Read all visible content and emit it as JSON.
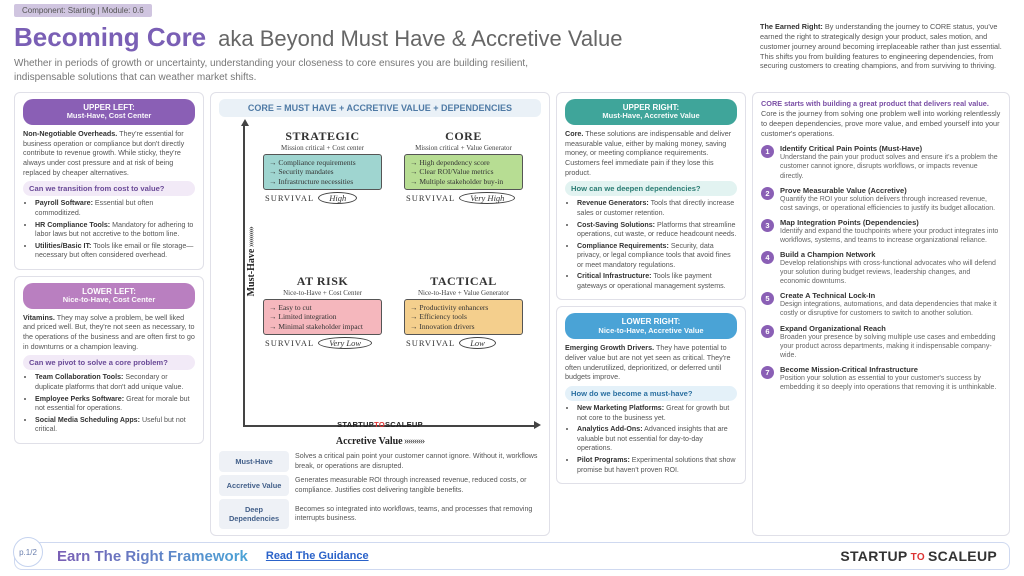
{
  "meta": {
    "component": "Component: Starting",
    "module": "Module: 0.6"
  },
  "title": {
    "main": "Becoming Core",
    "aka": "aka Beyond Must Have & Accretive Value",
    "sub": "Whether in periods of growth or uncertainty, understanding your closeness to core ensures you are building resilient, indispensable solutions that can weather market shifts."
  },
  "earned": {
    "heading": "The Earned Right:",
    "body": "By understanding the journey to CORE status, you've earned the right to strategically design your product, sales motion, and customer journey around becoming irreplaceable rather than just essential. This shifts you from building features to engineering dependencies, from securing customers to creating champions, and from surviving to thriving."
  },
  "colors": {
    "purple": "#8a5fb5",
    "pinkish": "#b97fc0",
    "teal": "#3fa59a",
    "blue": "#4aa3d6",
    "banner": "#eaf1f7",
    "banner_text": "#4f7aa5",
    "q_strategic": "#9fd5d0",
    "q_core": "#b7dd93",
    "q_atrisk": "#f5b7bd",
    "q_tactical": "#f4cf8d"
  },
  "upper_left": {
    "label": "UPPER LEFT:",
    "name": "Must-Have, Cost Center",
    "lead_b": "Non-Negotiable Overheads.",
    "lead": "They're essential for business operation or compliance but don't directly contribute to revenue growth. While sticky, they're always under cost pressure and at risk of being replaced by cheaper alternatives.",
    "q": "Can we transition from cost to value?",
    "items": [
      {
        "b": "Payroll Software:",
        "t": "Essential but often commoditized."
      },
      {
        "b": "HR Compliance Tools:",
        "t": "Mandatory for adhering to labor laws but not accretive to the bottom line."
      },
      {
        "b": "Utilities/Basic IT:",
        "t": "Tools like email or file storage—necessary but often considered overhead."
      }
    ]
  },
  "lower_left": {
    "label": "LOWER LEFT:",
    "name": "Nice-to-Have, Cost Center",
    "lead_b": "Vitamins.",
    "lead": "They may solve a problem, be well liked and priced well. But, they're not seen as necessary, to the operations of the business and are often first to go in downturns or a champion leaving.",
    "q": "Can we pivot to solve a core problem?",
    "items": [
      {
        "b": "Team Collaboration Tools:",
        "t": "Secondary or duplicate platforms that don't add unique value."
      },
      {
        "b": "Employee Perks Software:",
        "t": "Great for morale but not essential for operations."
      },
      {
        "b": "Social Media Scheduling Apps:",
        "t": "Useful but not critical."
      }
    ]
  },
  "upper_right": {
    "label": "UPPER RIGHT:",
    "name": "Must-Have, Accretive Value",
    "lead_b": "Core.",
    "lead": "These solutions are indispensable and deliver measurable value, either by making money, saving money, or meeting compliance requirements. Customers feel immediate pain if they lose this product.",
    "q": "How can we deepen dependencies?",
    "items": [
      {
        "b": "Revenue Generators:",
        "t": "Tools that directly increase sales or customer retention."
      },
      {
        "b": "Cost-Saving Solutions:",
        "t": "Platforms that streamline operations, cut waste, or reduce headcount needs."
      },
      {
        "b": "Compliance Requirements:",
        "t": "Security, data privacy, or legal compliance tools that avoid fines or meet mandatory regulations."
      },
      {
        "b": "Critical Infrastructure:",
        "t": "Tools like payment gateways or operational management systems."
      }
    ]
  },
  "lower_right": {
    "label": "LOWER RIGHT:",
    "name": "Nice-to-Have, Accretive Value",
    "lead_b": "Emerging Growth Drivers.",
    "lead": "They have potential to deliver value but are not yet seen as critical. They're often underutilized, deprioritized, or deferred until budgets improve.",
    "q": "How do we become a must-have?",
    "items": [
      {
        "b": "New Marketing Platforms:",
        "t": "Great for growth but not core to the business yet."
      },
      {
        "b": "Analytics Add-Ons:",
        "t": "Advanced insights that are valuable but not essential for day-to-day operations."
      },
      {
        "b": "Pilot Programs:",
        "t": "Experimental solutions that show promise but haven't proven ROI."
      }
    ]
  },
  "chart": {
    "banner": "CORE = MUST HAVE + ACCRETIVE VALUE + DEPENDENCIES",
    "y_axis": "Must-Have",
    "x_axis": "Accretive Value",
    "brand": {
      "s1": "STARTUP",
      "to": "TO",
      "s2": "SCALEUP"
    },
    "quads": {
      "strategic": {
        "title": "STRATEGIC",
        "sub": "Mission critical + Cost center",
        "bullets": [
          "Compliance requirements",
          "Security mandates",
          "Infrastructure necessities"
        ],
        "survival": "High"
      },
      "core": {
        "title": "CORE",
        "sub": "Mission critical + Value Generator",
        "bullets": [
          "High dependency score",
          "Clear ROI/Value metrics",
          "Multiple stakeholder buy-in"
        ],
        "survival": "Very High"
      },
      "at_risk": {
        "title": "AT RISK",
        "sub": "Nice-to-Have + Cost Center",
        "bullets": [
          "Easy to cut",
          "Limited integration",
          "Minimal stakeholder impact"
        ],
        "survival": "Very Low"
      },
      "tactical": {
        "title": "TACTICAL",
        "sub": "Nice-to-Have + Value Generator",
        "bullets": [
          "Productivity enhancers",
          "Efficiency tools",
          "Innovation drivers"
        ],
        "survival": "Low"
      }
    },
    "survival_label": "SURVIVAL",
    "defs": [
      {
        "k": "Must-Have",
        "v": "Solves a critical pain point your customer cannot ignore. Without it, workflows break, or operations are disrupted."
      },
      {
        "k": "Accretive Value",
        "v": "Generates measurable ROI through increased revenue, reduced costs, or compliance. Justifies cost delivering tangible benefits."
      },
      {
        "k": "Deep Dependencies",
        "v": "Becomes so integrated into workflows, teams, and processes that removing interrupts business."
      }
    ]
  },
  "journey": {
    "intro_b": "CORE starts with building a great product that delivers real value.",
    "intro": "Core is the journey from solving one problem well into working relentlessly to deepen dependencies, prove more value, and embed yourself into your customer's operations.",
    "steps": [
      {
        "n": "1",
        "t": "Identify Critical Pain Points (Must-Have)",
        "d": "Understand the pain your product solves and ensure it's a problem the customer cannot ignore, disrupts workflows, or impacts revenue directly."
      },
      {
        "n": "2",
        "t": "Prove Measurable Value (Accretive)",
        "d": "Quantify the ROI your solution delivers through increased revenue, cost savings, or operational efficiencies to justify its budget allocation."
      },
      {
        "n": "3",
        "t": "Map Integration Points (Dependencies)",
        "d": "Identify and expand the touchpoints where your product integrates into workflows, systems, and teams to increase organizational reliance."
      },
      {
        "n": "4",
        "t": "Build a Champion Network",
        "d": "Develop relationships with cross-functional advocates who will defend your solution during budget reviews, leadership changes, and economic downturns."
      },
      {
        "n": "5",
        "t": "Create A Technical Lock-In",
        "d": "Design integrations, automations, and data dependencies that make it costly or disruptive for customers to switch to another solution."
      },
      {
        "n": "6",
        "t": "Expand Organizational Reach",
        "d": "Broaden your presence by solving multiple use cases and embedding your product across departments, making it indispensable company-wide."
      },
      {
        "n": "7",
        "t": "Become Mission-Critical Infrastructure",
        "d": "Position your solution as essential to your customer's success by embedding it so deeply into operations that removing it is unthinkable."
      }
    ]
  },
  "footer": {
    "page": "p.1/2",
    "title": "Earn The Right Framework",
    "link": "Read The Guidance",
    "brand": {
      "s1": "STARTUP",
      "to": " TO ",
      "s2": "SCALEUP"
    }
  }
}
